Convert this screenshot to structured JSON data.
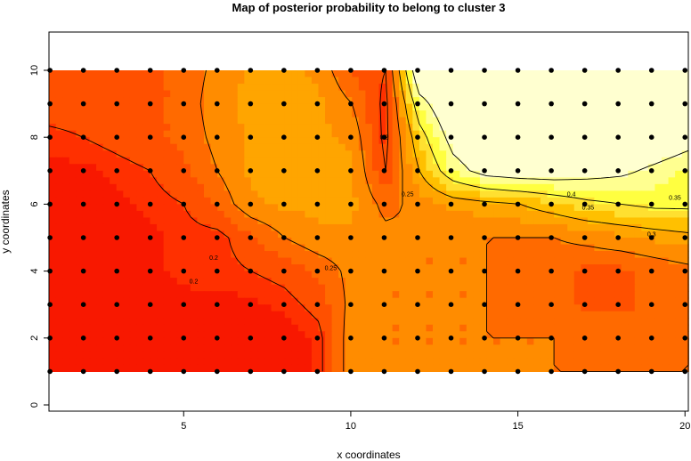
{
  "chart_data": {
    "type": "heatmap",
    "title": "Map of posterior probability to belong to cluster  3",
    "xlabel": "x coordinates",
    "ylabel": "y coordinates",
    "xlim": [
      0.97,
      20.1
    ],
    "ylim": [
      -1.04,
      11.14
    ],
    "xticks": [
      5,
      10,
      15,
      20
    ],
    "yticks": [
      0,
      2,
      4,
      6,
      8,
      10
    ],
    "grid": false,
    "contour_levels": [
      0.2,
      0.25,
      0.3,
      0.35,
      0.4
    ],
    "contour_labels": [
      "0.2",
      "0.25",
      "0.3",
      "0.35",
      "0.4"
    ],
    "x": [
      1,
      2,
      3,
      4,
      5,
      6,
      7,
      8,
      9,
      10,
      11,
      12,
      13,
      14,
      15,
      16,
      17,
      18,
      19,
      20
    ],
    "y": [
      10,
      9,
      8,
      7,
      6,
      5,
      4,
      3,
      2,
      1
    ],
    "z": [
      [
        0.22,
        0.22,
        0.22,
        0.22,
        0.23,
        0.26,
        0.28,
        0.28,
        0.27,
        0.22,
        0.2,
        0.45,
        0.46,
        0.46,
        0.46,
        0.46,
        0.46,
        0.46,
        0.46,
        0.46
      ],
      [
        0.22,
        0.22,
        0.22,
        0.22,
        0.23,
        0.27,
        0.28,
        0.28,
        0.28,
        0.25,
        0.19,
        0.38,
        0.45,
        0.46,
        0.46,
        0.46,
        0.46,
        0.46,
        0.46,
        0.46
      ],
      [
        0.19,
        0.2,
        0.21,
        0.22,
        0.23,
        0.26,
        0.28,
        0.28,
        0.28,
        0.27,
        0.19,
        0.33,
        0.42,
        0.45,
        0.46,
        0.46,
        0.46,
        0.45,
        0.44,
        0.42
      ],
      [
        0.18,
        0.18,
        0.19,
        0.2,
        0.22,
        0.25,
        0.28,
        0.28,
        0.28,
        0.28,
        0.2,
        0.3,
        0.38,
        0.42,
        0.43,
        0.43,
        0.42,
        0.41,
        0.39,
        0.37
      ],
      [
        0.18,
        0.18,
        0.18,
        0.19,
        0.2,
        0.23,
        0.27,
        0.28,
        0.28,
        0.28,
        0.24,
        0.26,
        0.28,
        0.29,
        0.3,
        0.32,
        0.34,
        0.35,
        0.36,
        0.36
      ],
      [
        0.18,
        0.18,
        0.18,
        0.18,
        0.19,
        0.19,
        0.22,
        0.25,
        0.27,
        0.27,
        0.26,
        0.25,
        0.25,
        0.25,
        0.25,
        0.25,
        0.26,
        0.27,
        0.28,
        0.29
      ],
      [
        0.18,
        0.18,
        0.18,
        0.18,
        0.19,
        0.19,
        0.2,
        0.21,
        0.23,
        0.26,
        0.25,
        0.25,
        0.25,
        0.25,
        0.24,
        0.23,
        0.22,
        0.22,
        0.23,
        0.24
      ],
      [
        0.18,
        0.18,
        0.18,
        0.18,
        0.18,
        0.18,
        0.18,
        0.19,
        0.21,
        0.26,
        0.25,
        0.25,
        0.25,
        0.25,
        0.24,
        0.23,
        0.22,
        0.22,
        0.23,
        0.24
      ],
      [
        0.18,
        0.18,
        0.18,
        0.18,
        0.18,
        0.18,
        0.17,
        0.17,
        0.19,
        0.27,
        0.25,
        0.25,
        0.25,
        0.25,
        0.25,
        0.25,
        0.24,
        0.24,
        0.24,
        0.25
      ],
      [
        0.18,
        0.18,
        0.18,
        0.18,
        0.18,
        0.18,
        0.17,
        0.17,
        0.19,
        0.27,
        0.25,
        0.25,
        0.25,
        0.25,
        0.25,
        0.25,
        0.25,
        0.25,
        0.25,
        0.25
      ]
    ],
    "points": "sampling sites at every integer x 1–20, y 1–10",
    "colors": [
      "#F81800",
      "#FF3000",
      "#FF5000",
      "#FF6A00",
      "#FF8C00",
      "#FFA500",
      "#FFC000",
      "#FFE030",
      "#FFFF40",
      "#FFFF90",
      "#FFFFD0"
    ]
  }
}
